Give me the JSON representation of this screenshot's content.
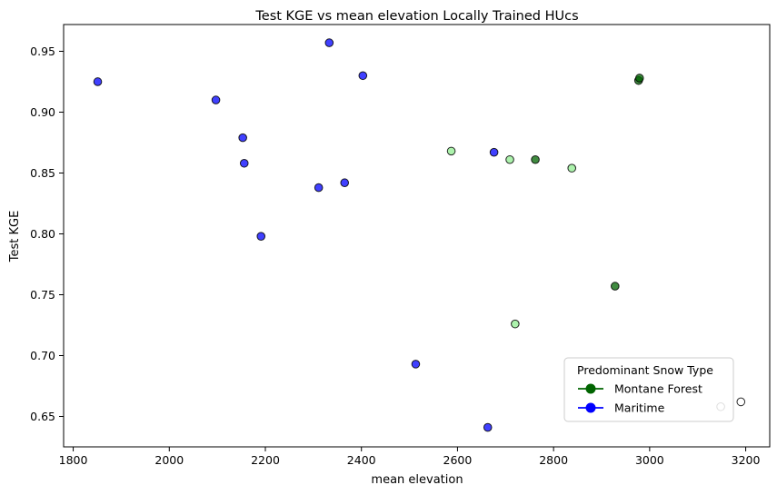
{
  "chart_data": {
    "type": "scatter",
    "title": "Test KGE vs mean elevation Locally Trained HUcs",
    "xlabel": "mean elevation",
    "ylabel": "Test KGE",
    "xlim": [
      1780,
      3250
    ],
    "ylim": [
      0.625,
      0.972
    ],
    "xticks": [
      1800,
      2000,
      2200,
      2400,
      2600,
      2800,
      3000,
      3200
    ],
    "yticks": [
      0.65,
      0.7,
      0.75,
      0.8,
      0.85,
      0.9,
      0.95
    ],
    "xtick_labels": [
      "1800",
      "2000",
      "2200",
      "2400",
      "2600",
      "2800",
      "3000",
      "3200"
    ],
    "ytick_labels": [
      "0.65",
      "0.70",
      "0.75",
      "0.80",
      "0.85",
      "0.90",
      "0.95"
    ],
    "grid": false,
    "legend": {
      "title": "Predominant Snow Type",
      "placement": "lower-right",
      "entries": [
        {
          "label": "Montane Forest",
          "color": "#006400"
        },
        {
          "label": "Maritime",
          "color": "#0000ff"
        }
      ]
    },
    "series": [
      {
        "name": "Maritime",
        "color": "#0000ff",
        "points": [
          {
            "x": 1851,
            "y": 0.925
          },
          {
            "x": 2097,
            "y": 0.91
          },
          {
            "x": 2153,
            "y": 0.879
          },
          {
            "x": 2156,
            "y": 0.858
          },
          {
            "x": 2191,
            "y": 0.798
          },
          {
            "x": 2311,
            "y": 0.838
          },
          {
            "x": 2333,
            "y": 0.957
          },
          {
            "x": 2365,
            "y": 0.842
          },
          {
            "x": 2403,
            "y": 0.93
          },
          {
            "x": 2513,
            "y": 0.693
          },
          {
            "x": 2663,
            "y": 0.641
          },
          {
            "x": 2676,
            "y": 0.867
          }
        ]
      },
      {
        "name": "Montane Forest",
        "color": "#006400",
        "points": [
          {
            "x": 2762,
            "y": 0.861
          },
          {
            "x": 2928,
            "y": 0.757
          },
          {
            "x": 2977,
            "y": 0.926
          },
          {
            "x": 2979,
            "y": 0.928
          }
        ]
      },
      {
        "color": "#90ee90",
        "points": [
          {
            "x": 2587,
            "y": 0.868
          },
          {
            "x": 2709,
            "y": 0.861
          },
          {
            "x": 2720,
            "y": 0.726
          },
          {
            "x": 2838,
            "y": 0.854
          }
        ]
      },
      {
        "color": "#ffffff",
        "points": [
          {
            "x": 3148,
            "y": 0.658
          },
          {
            "x": 3190,
            "y": 0.662
          }
        ]
      }
    ]
  }
}
